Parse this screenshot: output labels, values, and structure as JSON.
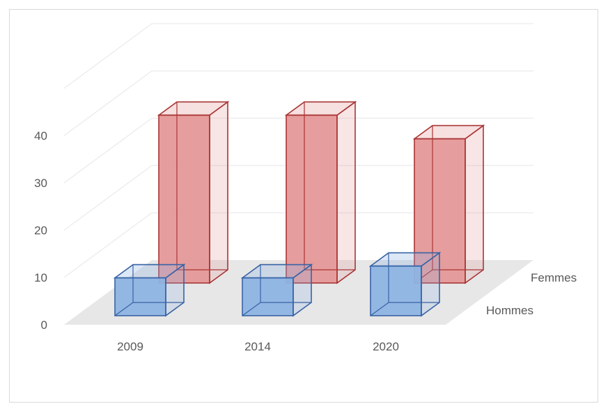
{
  "chart_data": {
    "type": "bar",
    "title": "",
    "categories": [
      "2009",
      "2014",
      "2020"
    ],
    "series": [
      {
        "name": "Hommes",
        "values": [
          8,
          8,
          10.5
        ],
        "color": "#8eb4e3",
        "edge": "#3763a5"
      },
      {
        "name": "Femmes",
        "values": [
          35.5,
          35.5,
          30.5
        ],
        "color": "#e59898",
        "edge": "#a93434"
      }
    ],
    "yticks": [
      "0",
      "10",
      "20",
      "30",
      "40"
    ],
    "ylim": [
      0,
      50
    ],
    "grid": true,
    "legend": "depth-axis labels"
  }
}
